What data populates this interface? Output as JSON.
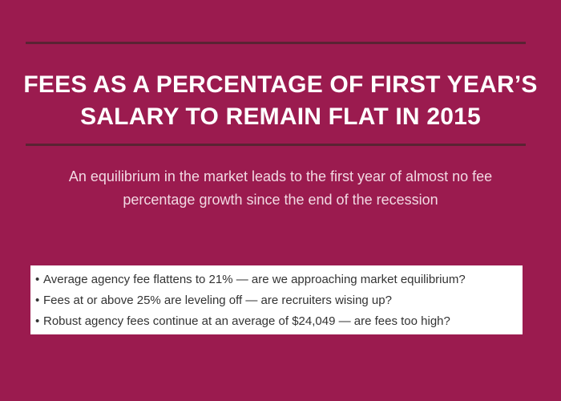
{
  "header": {
    "title_lines": [
      "FEES AS A PERCENTAGE OF FIRST YEAR’S",
      "SALARY TO REMAIN FLAT IN 2015"
    ],
    "subtitle_lines": [
      "An equilibrium in the market leads to the first year of almost no fee",
      "percentage growth since the end of the recession"
    ]
  },
  "bullets": [
    "Average agency fee flattens to 21% — are we approaching market equilibrium?",
    "Fees at or above 25% are leveling off — are recruiters wising up?",
    "Robust agency fees continue at an average of $24,049 — are fees too high?"
  ],
  "colors": {
    "background": "#9b1b4f",
    "rule": "#5a2333",
    "title": "#ffffff",
    "subtitle": "#f2d9e3",
    "panel": "#ffffff"
  }
}
